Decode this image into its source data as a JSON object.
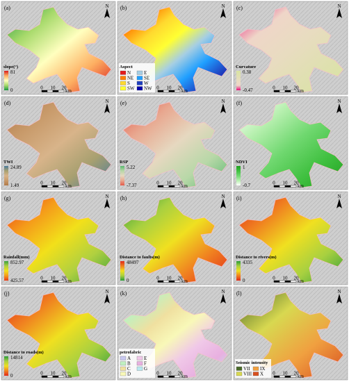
{
  "panels": [
    {
      "label": "(a)",
      "north": "N",
      "legend": {
        "title": "slope(°)",
        "max": "81",
        "min": "0",
        "colors": [
          "#1a9641",
          "#a6d96a",
          "#ffffbf",
          "#fdae61",
          "#d7191c"
        ]
      },
      "scale": {
        "ticks": [
          "0",
          "10",
          "20"
        ],
        "unit": "km"
      }
    },
    {
      "label": "(b)",
      "north": "N",
      "legend": {
        "title": "Aspect",
        "items": [
          {
            "label": "N",
            "color": "#e31a1c"
          },
          {
            "label": "NE",
            "color": "#ff7f00"
          },
          {
            "label": "S",
            "color": "#ffd92f"
          },
          {
            "label": "SW",
            "color": "#ffff33"
          },
          {
            "label": "E",
            "color": "#a6cee3"
          },
          {
            "label": "SE",
            "color": "#1f9fff"
          },
          {
            "label": "W",
            "color": "#1f3fbf"
          },
          {
            "label": "NW",
            "color": "#0000aa"
          }
        ]
      },
      "scale": {
        "ticks": [
          "0",
          "10",
          "20"
        ],
        "unit": "km"
      }
    },
    {
      "label": "(c)",
      "north": "N",
      "legend": {
        "title": "Curvature",
        "max": "0.38",
        "min": "-0.47",
        "colors": [
          "#e7127a",
          "#efd6c8",
          "#e8dcc0",
          "#dfe0b0",
          "#d8e4a0"
        ]
      },
      "scale": {
        "ticks": [
          "0",
          "10",
          "20"
        ],
        "unit": "km"
      }
    },
    {
      "label": "(d)",
      "north": "N",
      "legend": {
        "title": "TWI",
        "max": "24.89",
        "min": "1.49",
        "colors": [
          "#b07a4a",
          "#c89a6a",
          "#d8b48a",
          "#a8a070",
          "#4a7a9a"
        ]
      },
      "scale": {
        "ticks": [
          "0",
          "10",
          "20"
        ],
        "unit": "km"
      }
    },
    {
      "label": "(e)",
      "north": "N",
      "legend": {
        "title": "RSP",
        "max": "5.22",
        "min": "-7.37",
        "colors": [
          "#e35a4a",
          "#e8a890",
          "#e6d8c0",
          "#b8d8a8",
          "#5ab870"
        ]
      },
      "scale": {
        "ticks": [
          "0",
          "10",
          "20"
        ],
        "unit": "km"
      }
    },
    {
      "label": "(f)",
      "north": "N",
      "legend": {
        "title": "NDVI",
        "max": "1",
        "min": "-0.7",
        "colors": [
          "#ffffff",
          "#b8f0b0",
          "#70d870",
          "#40c040",
          "#20a020"
        ]
      },
      "scale": {
        "ticks": [
          "0",
          "10",
          "20"
        ],
        "unit": "km"
      }
    },
    {
      "label": "(g)",
      "north": "N",
      "legend": {
        "title": "Rainfall(mm)",
        "max": "852.97",
        "min": "425.57",
        "colors": [
          "#e63a1a",
          "#f59a1a",
          "#f2e01a",
          "#b0d040",
          "#3aa040"
        ]
      },
      "scale": {
        "ticks": [
          "0",
          "10",
          "20"
        ],
        "unit": "km"
      }
    },
    {
      "label": "(h)",
      "north": "N",
      "legend": {
        "title": "Distance to faults(m)",
        "max": "48497",
        "min": "0",
        "colors": [
          "#2a9a3a",
          "#a8d040",
          "#f0e020",
          "#f08020",
          "#e02a1a"
        ]
      },
      "scale": {
        "ticks": [
          "0",
          "10",
          "20"
        ],
        "unit": "km"
      }
    },
    {
      "label": "(i)",
      "north": "N",
      "legend": {
        "title": "Distance to rivers(m)",
        "max": "4335",
        "min": "0",
        "colors": [
          "#e02a1a",
          "#f08020",
          "#f0e020",
          "#a8d040",
          "#2a9a3a"
        ]
      },
      "scale": {
        "ticks": [
          "0",
          "10",
          "20"
        ],
        "unit": "km"
      }
    },
    {
      "label": "(j)",
      "north": "N",
      "legend": {
        "title": "Distance to roads(m)",
        "max": "14814",
        "min": "0",
        "colors": [
          "#e02a1a",
          "#f08020",
          "#f0e020",
          "#a8d040",
          "#2a9a3a"
        ]
      },
      "scale": {
        "ticks": [
          "0",
          "10",
          "20"
        ],
        "unit": "km"
      }
    },
    {
      "label": "(k)",
      "north": "N",
      "legend": {
        "title": "petrofabric",
        "items": [
          {
            "label": "A",
            "color": "#c8c8f0"
          },
          {
            "label": "B",
            "color": "#c0f0c0"
          },
          {
            "label": "C",
            "color": "#f0e0a0"
          },
          {
            "label": "D",
            "color": "#f8f8b8"
          },
          {
            "label": "E",
            "color": "#f0c8e8"
          },
          {
            "label": "F",
            "color": "#e8b0e0"
          },
          {
            "label": "G",
            "color": "#b8e8f0"
          }
        ]
      },
      "scale": {
        "ticks": [
          "0",
          "10",
          "20"
        ],
        "unit": "km"
      }
    },
    {
      "label": "(l)",
      "north": "N",
      "legend": {
        "title": "Seismic intensity",
        "items": [
          {
            "label": "VII",
            "color": "#4a6a2a"
          },
          {
            "label": "VIII",
            "color": "#d8d850"
          },
          {
            "label": "IX",
            "color": "#f0a040"
          },
          {
            "label": "X",
            "color": "#d85020"
          }
        ]
      },
      "scale": {
        "ticks": [
          "0",
          "10",
          "20"
        ],
        "unit": "km"
      }
    }
  ]
}
